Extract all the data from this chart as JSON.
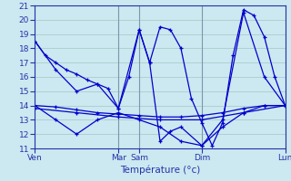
{
  "xlabel": "Température (°c)",
  "background_color": "#cce8f0",
  "grid_color": "#aacccc",
  "line_color": "#0000cc",
  "ylim": [
    11,
    21
  ],
  "xlim": [
    0,
    24
  ],
  "yticks": [
    11,
    12,
    13,
    14,
    15,
    16,
    17,
    18,
    19,
    20,
    21
  ],
  "day_positions": [
    0,
    8,
    10,
    16,
    24
  ],
  "day_labels": [
    "Ven",
    "Mar",
    "Sam",
    "Dim",
    "Lun"
  ],
  "lines": [
    {
      "x": [
        0,
        1,
        2,
        3,
        4,
        5,
        6,
        7,
        8,
        9,
        10,
        11,
        12,
        13,
        14,
        15,
        16,
        17,
        18,
        19,
        20,
        21,
        22,
        23,
        24
      ],
      "y": [
        18.5,
        17.5,
        17.0,
        16.5,
        16.2,
        15.8,
        15.5,
        15.2,
        13.8,
        16.0,
        19.3,
        17.0,
        19.5,
        19.3,
        18.0,
        14.5,
        12.8,
        11.2,
        12.8,
        17.5,
        20.7,
        20.3,
        18.8,
        16.0,
        14.0
      ]
    },
    {
      "x": [
        0,
        2,
        4,
        6,
        8,
        10,
        11,
        12,
        13,
        14,
        16,
        18,
        20,
        22,
        24
      ],
      "y": [
        18.5,
        16.5,
        15.0,
        15.5,
        13.8,
        19.3,
        17.0,
        11.5,
        12.2,
        12.5,
        11.2,
        13.0,
        20.5,
        16.0,
        14.0
      ]
    },
    {
      "x": [
        0,
        2,
        4,
        6,
        8,
        10,
        12,
        14,
        16,
        18,
        20,
        22,
        24
      ],
      "y": [
        14.0,
        13.9,
        13.7,
        13.5,
        13.4,
        13.3,
        13.2,
        13.2,
        13.3,
        13.5,
        13.8,
        14.0,
        14.0
      ]
    },
    {
      "x": [
        0,
        2,
        4,
        6,
        8,
        10,
        12,
        14,
        16,
        18,
        20,
        22,
        24
      ],
      "y": [
        14.0,
        13.0,
        12.0,
        13.0,
        13.5,
        13.0,
        12.5,
        11.5,
        11.2,
        12.5,
        13.5,
        14.0,
        14.0
      ]
    },
    {
      "x": [
        0,
        4,
        8,
        12,
        16,
        20,
        24
      ],
      "y": [
        13.8,
        13.5,
        13.2,
        13.0,
        13.0,
        13.5,
        14.0
      ]
    }
  ]
}
